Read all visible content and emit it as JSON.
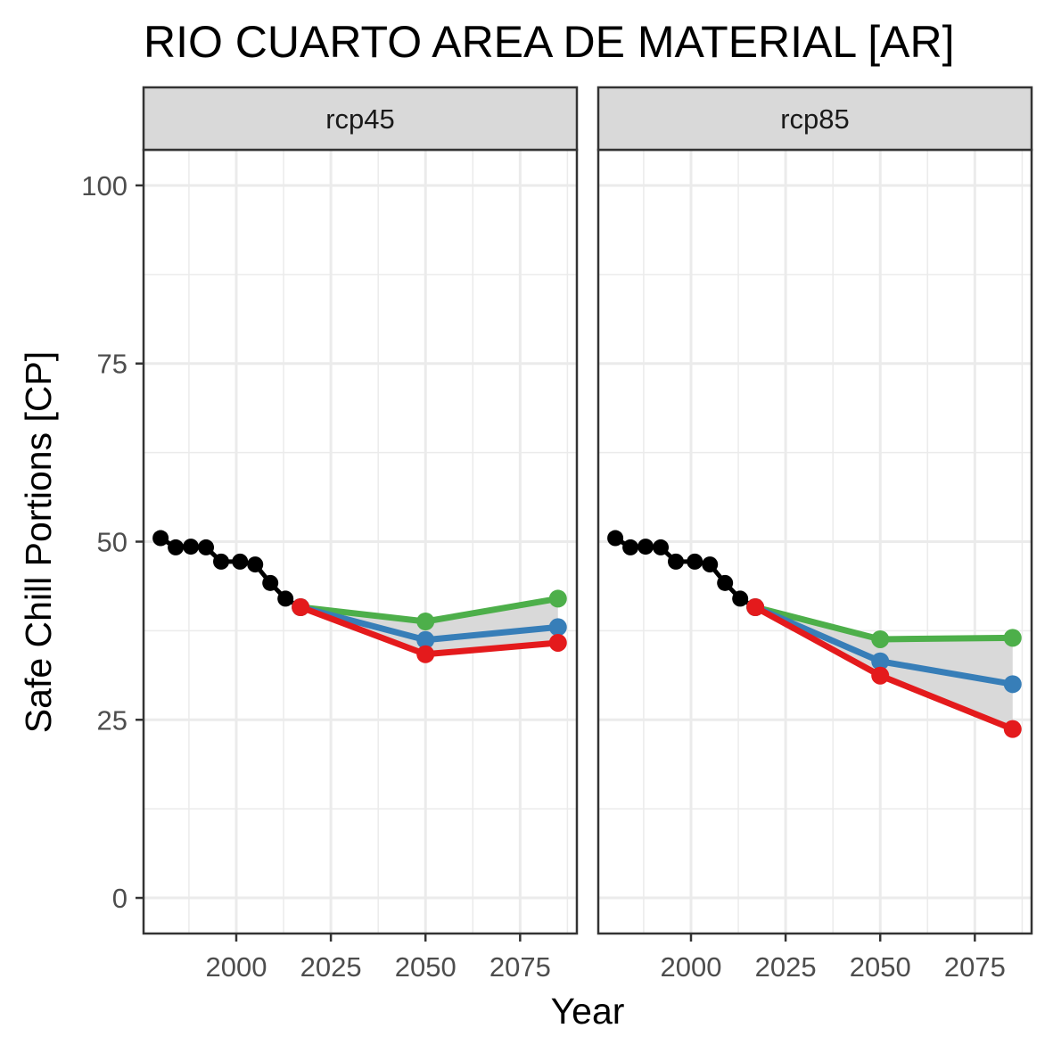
{
  "chart_data": {
    "type": "line",
    "title": "RIO CUARTO AREA DE MATERIAL [AR]",
    "xlabel": "Year",
    "ylabel": "Safe Chill Portions [CP]",
    "xlim": [
      1975.5,
      2090
    ],
    "ylim": [
      -5,
      105
    ],
    "xticks": [
      2000,
      2025,
      2050,
      2075
    ],
    "yticks": [
      0,
      25,
      50,
      75,
      100
    ],
    "grid": true,
    "legend": "none",
    "colors": {
      "historic": "#000000",
      "green": "#4daf4a",
      "blue": "#377eb8",
      "red": "#e41a1c",
      "ribbon": "#d9d9d9",
      "grid": "#ebebeb",
      "strip_fill": "#d9d9d9",
      "panel_border": "#333333"
    },
    "panels": [
      {
        "label": "rcp45",
        "historic": {
          "x": [
            1980,
            1984,
            1988,
            1992,
            1996,
            2001,
            2005,
            2009,
            2013,
            2017
          ],
          "y": [
            50.5,
            49.2,
            49.3,
            49.2,
            47.2,
            47.2,
            46.8,
            44.2,
            42.0,
            40.8
          ]
        },
        "series": [
          {
            "color": "green",
            "x": [
              2017,
              2050,
              2085
            ],
            "y": [
              40.8,
              38.8,
              42.0
            ]
          },
          {
            "color": "blue",
            "x": [
              2017,
              2050,
              2085
            ],
            "y": [
              40.8,
              36.2,
              38.0
            ]
          },
          {
            "color": "red",
            "x": [
              2017,
              2050,
              2085
            ],
            "y": [
              40.8,
              34.2,
              35.8
            ]
          }
        ]
      },
      {
        "label": "rcp85",
        "historic": {
          "x": [
            1980,
            1984,
            1988,
            1992,
            1996,
            2001,
            2005,
            2009,
            2013,
            2017
          ],
          "y": [
            50.5,
            49.2,
            49.3,
            49.2,
            47.2,
            47.2,
            46.8,
            44.2,
            42.0,
            40.8
          ]
        },
        "series": [
          {
            "color": "green",
            "x": [
              2017,
              2050,
              2085
            ],
            "y": [
              40.8,
              36.3,
              36.5
            ]
          },
          {
            "color": "blue",
            "x": [
              2017,
              2050,
              2085
            ],
            "y": [
              40.8,
              33.2,
              30.0
            ]
          },
          {
            "color": "red",
            "x": [
              2017,
              2050,
              2085
            ],
            "y": [
              40.8,
              31.2,
              23.7
            ]
          }
        ]
      }
    ]
  }
}
